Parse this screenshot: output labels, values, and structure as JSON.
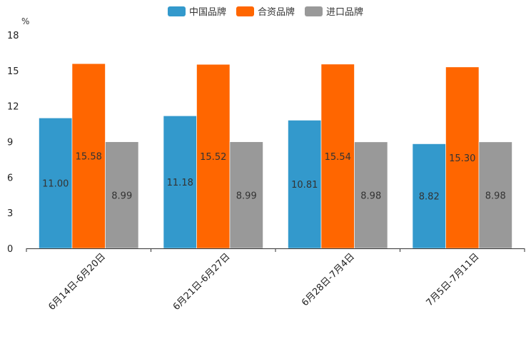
{
  "chart_data": {
    "type": "bar",
    "unit_label": "%",
    "categories": [
      "6月14日-6月20日",
      "6月21日-6月27日",
      "6月28日-7月4日",
      "7月5日-7月11日"
    ],
    "series": [
      {
        "name": "中国品牌",
        "color": "#3399cc",
        "values": [
          11.0,
          11.18,
          10.81,
          8.82
        ],
        "labels": [
          "11.00",
          "11.18",
          "10.81",
          "8.82"
        ]
      },
      {
        "name": "合资品牌",
        "color": "#ff6600",
        "values": [
          15.58,
          15.52,
          15.54,
          15.3
        ],
        "labels": [
          "15.58",
          "15.52",
          "15.54",
          "15.30"
        ]
      },
      {
        "name": "进口品牌",
        "color": "#999999",
        "values": [
          8.99,
          8.99,
          8.98,
          8.98
        ],
        "labels": [
          "8.99",
          "8.99",
          "8.98",
          "8.98"
        ]
      }
    ],
    "ylim": [
      0,
      18
    ],
    "yticks": [
      "0",
      "3",
      "6",
      "9",
      "12",
      "15",
      "18"
    ],
    "legend_position": "top-center"
  }
}
